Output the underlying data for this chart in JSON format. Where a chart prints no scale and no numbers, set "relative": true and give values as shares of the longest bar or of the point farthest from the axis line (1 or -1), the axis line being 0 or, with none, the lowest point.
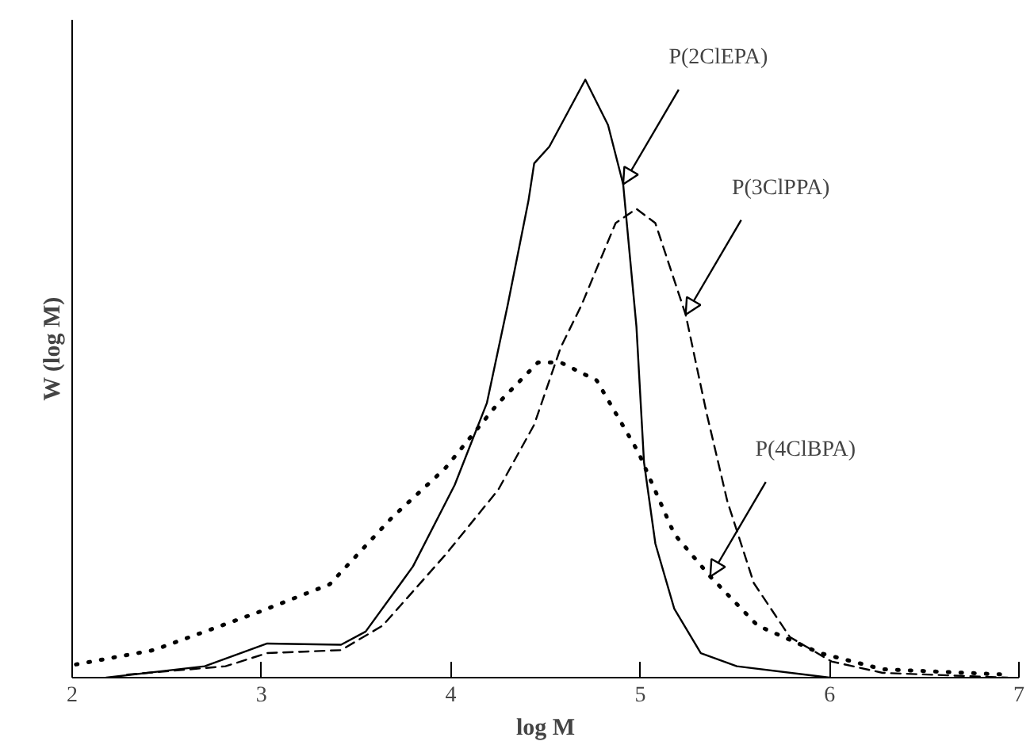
{
  "chart_data": {
    "type": "line",
    "relative": true,
    "xlabel": "log M",
    "ylabel": "W (log M)",
    "xlim": [
      2,
      7
    ],
    "xticks": [
      2,
      3,
      4,
      5,
      6,
      7
    ],
    "grid": false,
    "marker": "none",
    "series": [
      {
        "color": "#000000",
        "line_style": "solid",
        "x": [
          2.18,
          2.7,
          3.03,
          3.42,
          3.55,
          3.8,
          4.02,
          4.19,
          4.3,
          4.41,
          4.44,
          4.52,
          4.71,
          4.83,
          4.91,
          4.98,
          5.02,
          5.08,
          5.18,
          5.32,
          5.51,
          6.0
        ],
        "values": [
          0,
          0.019,
          0.057,
          0.055,
          0.077,
          0.186,
          0.322,
          0.459,
          0.623,
          0.798,
          0.86,
          0.888,
          1,
          0.924,
          0.825,
          0.587,
          0.36,
          0.224,
          0.115,
          0.041,
          0.019,
          0
        ]
      },
      {
        "color": "#000000",
        "line_style": "dashed",
        "x": [
          2.29,
          2.81,
          3.03,
          3.42,
          3.64,
          3.97,
          4.25,
          4.44,
          4.58,
          4.69,
          4.87,
          4.98,
          5.08,
          5.24,
          5.35,
          5.46,
          5.6,
          5.79,
          6.01,
          6.28,
          6.94
        ],
        "values": [
          0.005,
          0.019,
          0.041,
          0.046,
          0.087,
          0.205,
          0.314,
          0.423,
          0.552,
          0.623,
          0.76,
          0.784,
          0.76,
          0.607,
          0.443,
          0.295,
          0.158,
          0.068,
          0.027,
          0.008,
          0
        ]
      },
      {
        "color": "#000000",
        "line_style": "dotted",
        "x": [
          2.02,
          2.43,
          2.98,
          3.36,
          3.69,
          3.97,
          4.25,
          4.46,
          4.58,
          4.77,
          4.99,
          5.18,
          5.37,
          5.62,
          5.95,
          6.28,
          6.94
        ],
        "values": [
          0.022,
          0.046,
          0.109,
          0.156,
          0.268,
          0.35,
          0.459,
          0.527,
          0.527,
          0.497,
          0.377,
          0.24,
          0.169,
          0.087,
          0.041,
          0.014,
          0.005
        ]
      }
    ],
    "annotations": [
      {
        "text": "P(2ClEPA)",
        "x": 4.91,
        "y": 0.825
      },
      {
        "text": "P(3ClPPA)",
        "x": 5.24,
        "y": 0.607
      },
      {
        "text": "P(4ClBPA)",
        "x": 5.37,
        "y": 0.169
      }
    ]
  }
}
